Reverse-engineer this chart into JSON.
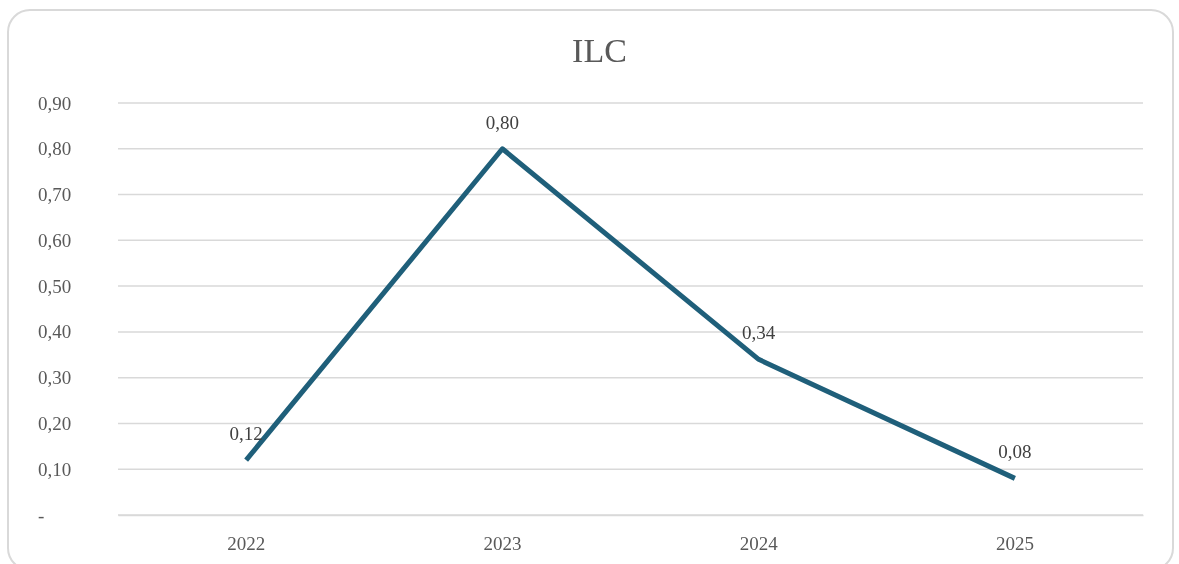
{
  "chart_data": {
    "type": "line",
    "title": "ILC",
    "categories": [
      "2022",
      "2023",
      "2024",
      "2025"
    ],
    "series": [
      {
        "color": "#1f5f7a",
        "values": [
          0.12,
          0.8,
          0.34,
          0.08
        ],
        "value_labels": [
          "0,12",
          "0,80",
          "0,34",
          "0,08"
        ]
      }
    ],
    "ylim": [
      0,
      0.9
    ],
    "yticks": [
      {
        "value": 0,
        "label": "-"
      },
      {
        "value": 0.1,
        "label": "0,10"
      },
      {
        "value": 0.2,
        "label": "0,20"
      },
      {
        "value": 0.3,
        "label": "0,30"
      },
      {
        "value": 0.4,
        "label": "0,40"
      },
      {
        "value": 0.5,
        "label": "0,50"
      },
      {
        "value": 0.6,
        "label": "0,60"
      },
      {
        "value": 0.7,
        "label": "0,70"
      },
      {
        "value": 0.8,
        "label": "0,80"
      },
      {
        "value": 0.9,
        "label": "0,90"
      }
    ],
    "grid": "y",
    "line_style": "solid"
  }
}
